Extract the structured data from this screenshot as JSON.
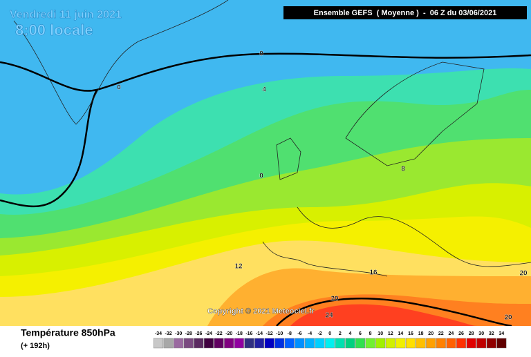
{
  "header": {
    "date": "Vendredi 11 juin 2021",
    "time": "8:00 locale",
    "run": "Ensemble GEFS  ( Moyenne )  -  06 Z du 03/06/2021"
  },
  "map": {
    "contour_labels": [
      0,
      0,
      4,
      0,
      8,
      12,
      16,
      20,
      24,
      20,
      20
    ],
    "copyright": "Copyright © 2021 Meteociel.fr"
  },
  "legend": {
    "title": "Température 850hPa",
    "lead": "(+ 192h)",
    "scale": [
      {
        "value": -34,
        "color": "#c8c8c8"
      },
      {
        "value": -32,
        "color": "#a8a8a8"
      },
      {
        "value": -30,
        "color": "#9a6aa0"
      },
      {
        "value": -28,
        "color": "#7a4a80"
      },
      {
        "value": -26,
        "color": "#5a2a60"
      },
      {
        "value": -24,
        "color": "#400040"
      },
      {
        "value": -22,
        "color": "#600060"
      },
      {
        "value": -20,
        "color": "#800080"
      },
      {
        "value": -18,
        "color": "#9000a0"
      },
      {
        "value": -16,
        "color": "#303080"
      },
      {
        "value": -14,
        "color": "#2020a0"
      },
      {
        "value": -12,
        "color": "#0000c0"
      },
      {
        "value": -10,
        "color": "#0030e0"
      },
      {
        "value": -8,
        "color": "#0060ff"
      },
      {
        "value": -6,
        "color": "#0090ff"
      },
      {
        "value": -4,
        "color": "#00b0ff"
      },
      {
        "value": -2,
        "color": "#00d0ff"
      },
      {
        "value": 0,
        "color": "#00f0f0"
      },
      {
        "value": 2,
        "color": "#00e0b0"
      },
      {
        "value": 4,
        "color": "#00d080"
      },
      {
        "value": 6,
        "color": "#30e050"
      },
      {
        "value": 8,
        "color": "#70f030"
      },
      {
        "value": 10,
        "color": "#a0f000"
      },
      {
        "value": 12,
        "color": "#d0f000"
      },
      {
        "value": 14,
        "color": "#f0f000"
      },
      {
        "value": 16,
        "color": "#ffe000"
      },
      {
        "value": 18,
        "color": "#ffc000"
      },
      {
        "value": 20,
        "color": "#ffa000"
      },
      {
        "value": 22,
        "color": "#ff8000"
      },
      {
        "value": 24,
        "color": "#ff6000"
      },
      {
        "value": 26,
        "color": "#ff3000"
      },
      {
        "value": 28,
        "color": "#e00000"
      },
      {
        "value": 30,
        "color": "#c00000"
      },
      {
        "value": 32,
        "color": "#900000"
      },
      {
        "value": 34,
        "color": "#600000"
      }
    ]
  }
}
